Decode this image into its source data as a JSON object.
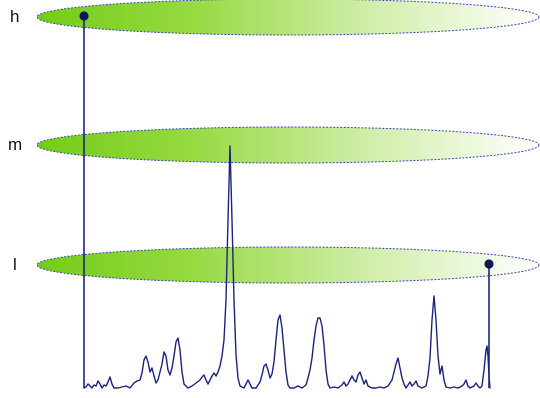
{
  "levels": [
    {
      "key": "h",
      "label": "h"
    },
    {
      "key": "m",
      "label": "m"
    },
    {
      "key": "l",
      "label": "l"
    }
  ],
  "colors": {
    "disc_fill_start": "#7ed321",
    "disc_fill_end": "#ffffff",
    "disc_outline": "#3a4aa8",
    "signal_line": "#1a237e",
    "pin_head": "#0d1757"
  }
}
